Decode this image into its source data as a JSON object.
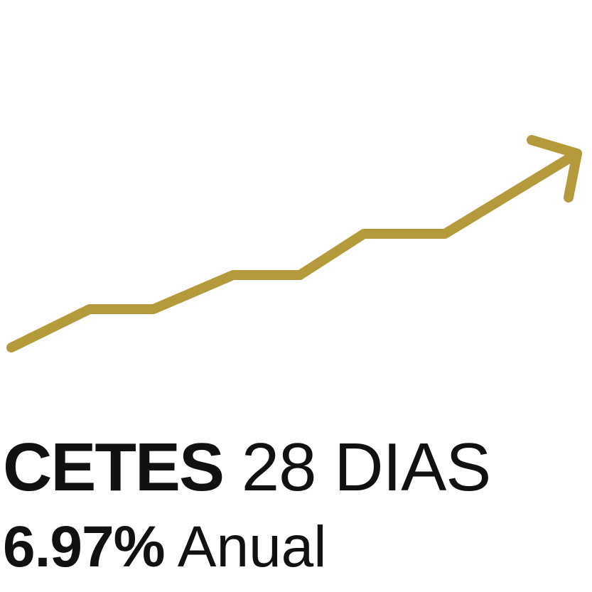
{
  "graphic": {
    "icon": "trend-up-arrow-icon",
    "color": "#B59A3C"
  },
  "title": {
    "instrument": "CETES",
    "term": "28 DIAS"
  },
  "rate": {
    "value": "6.97%",
    "unit": "Anual"
  }
}
